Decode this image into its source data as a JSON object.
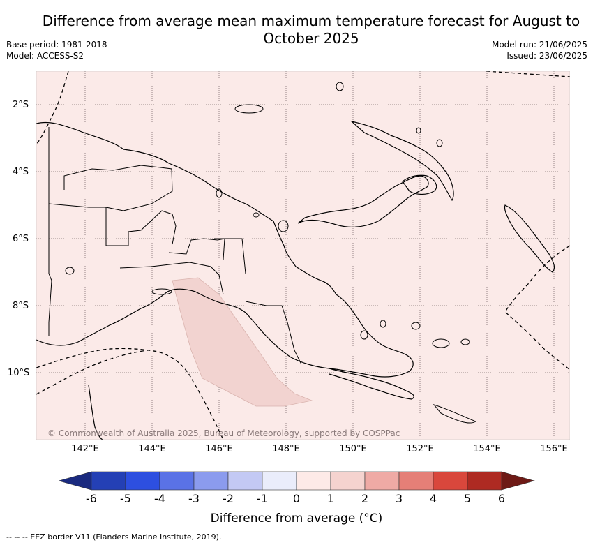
{
  "title": "Difference from average mean maximum temperature forecast for August to October 2025",
  "meta": {
    "base_period": "Base period: 1981-2018",
    "model": "Model: ACCESS-S2",
    "model_run": "Model run: 21/06/2025",
    "issued": "Issued: 23/06/2025"
  },
  "map": {
    "region": "Papua New Guinea",
    "background_color": "#fbeae8",
    "anomaly_patch_color": "#f2d3d0",
    "lat_labels": [
      "2°S",
      "4°S",
      "6°S",
      "8°S",
      "10°S"
    ],
    "lon_labels": [
      "142°E",
      "144°E",
      "146°E",
      "148°E",
      "150°E",
      "152°E",
      "154°E",
      "156°E"
    ],
    "copyright": "© Commonwealth of Australia 2025, Bureau of Meteorology, supported by COSPPac"
  },
  "colorbar": {
    "title": "Difference from average (°C)",
    "ticks": [
      "-6",
      "-5",
      "-4",
      "-3",
      "-2",
      "-1",
      "0",
      "1",
      "2",
      "3",
      "4",
      "5",
      "6"
    ],
    "colors": [
      "#1a2a7f",
      "#2440b5",
      "#2d4fe0",
      "#5a72e6",
      "#8b9bee",
      "#c3c9f4",
      "#eaedfb",
      "#fdeae7",
      "#f5d3cf",
      "#efaaa5",
      "#e57f77",
      "#d9473c",
      "#ae2a22",
      "#6e1a16"
    ]
  },
  "footer": "-- -- -- EEZ border V11 (Flanders Marine Institute, 2019)."
}
